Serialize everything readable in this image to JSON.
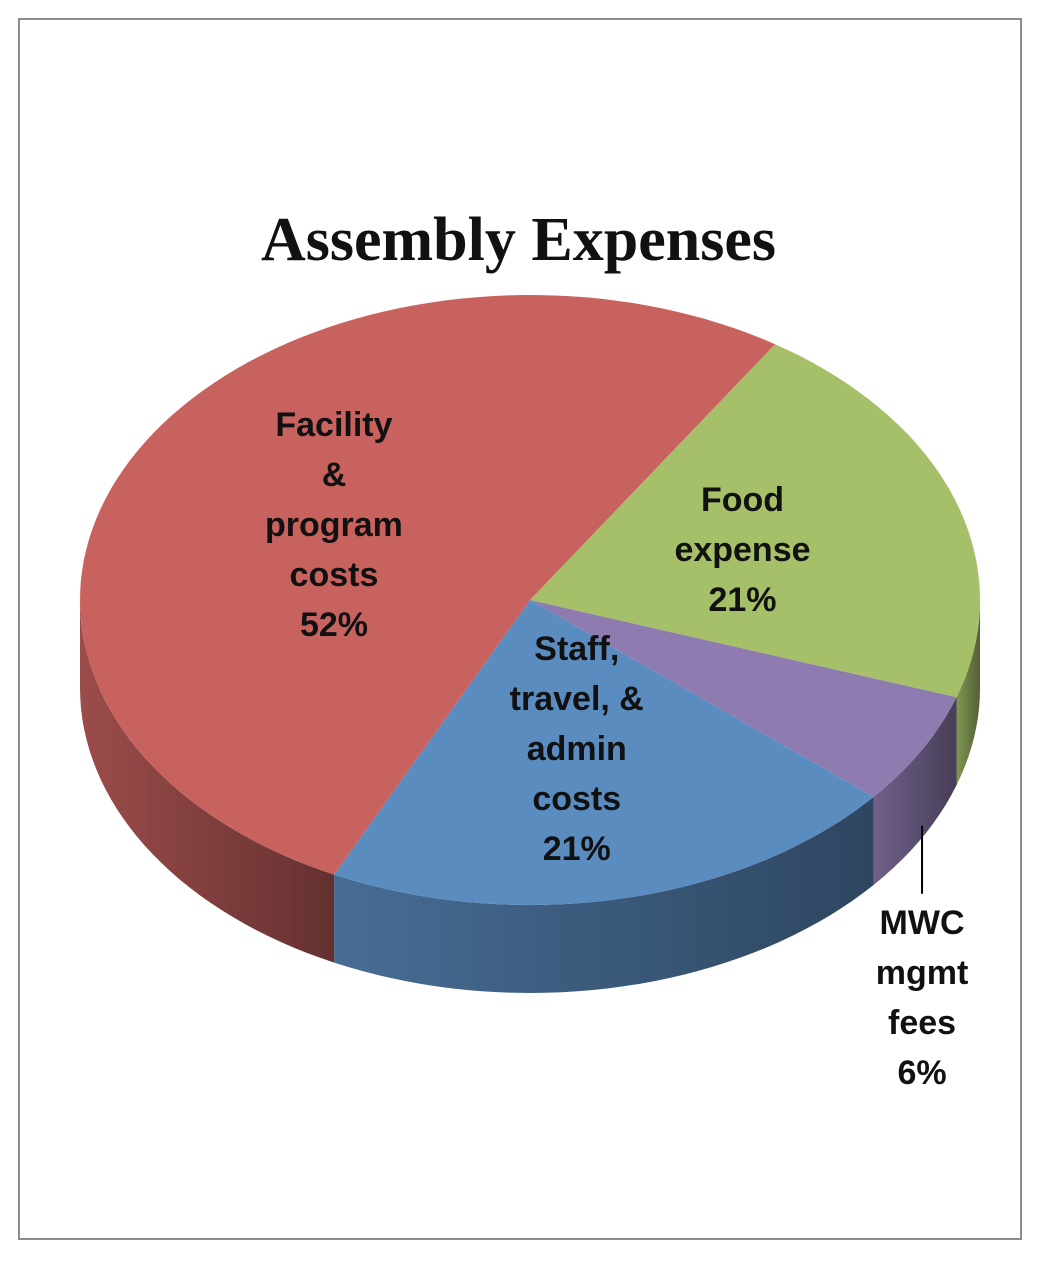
{
  "chart_data": {
    "type": "pie",
    "title": "Assembly Expenses",
    "categories": [
      "Food expense",
      "MWC mgmt fees",
      "Staff, travel, & admin costs",
      "Facility & program costs"
    ],
    "values": [
      21,
      6,
      21,
      52
    ],
    "value_labels": [
      "21%",
      "6%",
      "21%",
      "52%"
    ],
    "colors": [
      "#a6c06a",
      "#8e7bb0",
      "#5b8cc0",
      "#c8625f"
    ]
  }
}
